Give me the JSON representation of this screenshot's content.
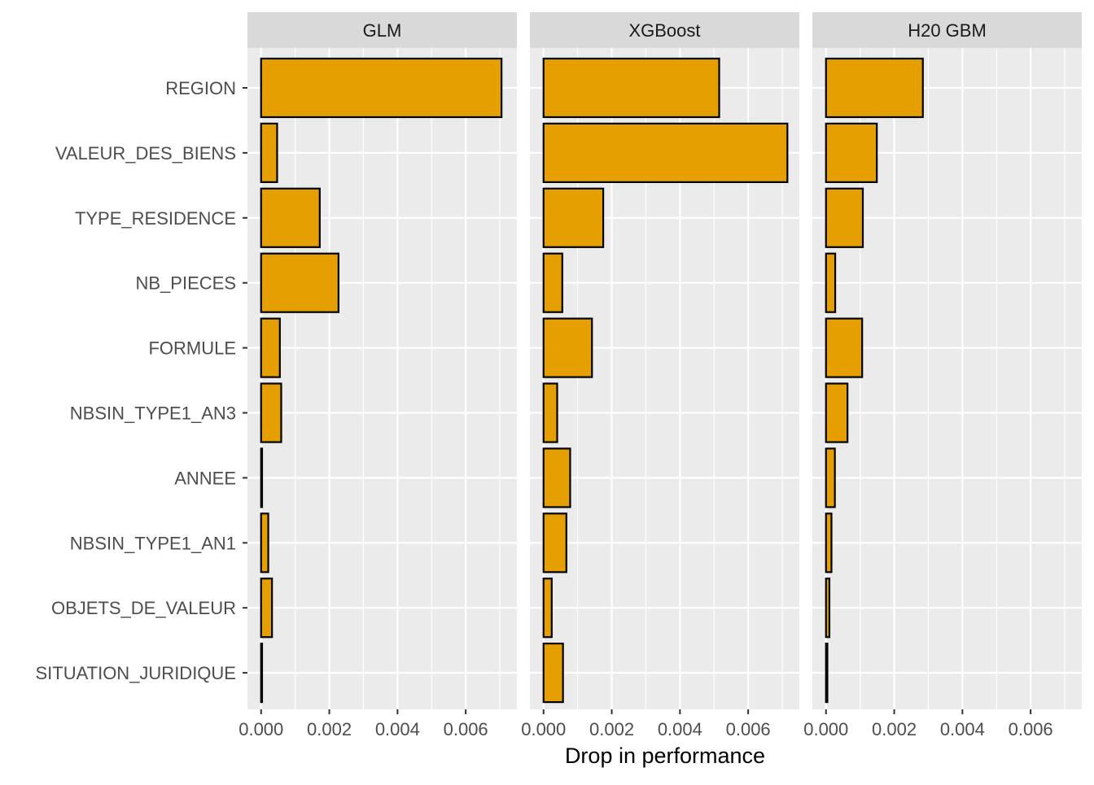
{
  "chart_data": {
    "type": "bar",
    "orientation": "horizontal",
    "xlabel": "Drop in performance",
    "ylabel": "",
    "xlim": [
      -0.0004,
      0.0075
    ],
    "x_ticks": [
      0.0,
      0.002,
      0.004,
      0.006
    ],
    "x_tick_labels": [
      "0.000",
      "0.002",
      "0.004",
      "0.006"
    ],
    "grid": true,
    "legend": "none",
    "bar_color": "#E69F00",
    "bar_outline": "#000000",
    "panel_background": "#EBEBEB",
    "strip_background": "#D9D9D9",
    "grid_color": "#FFFFFF",
    "categories": [
      "REGION",
      "VALEUR_DES_BIENS",
      "TYPE_RESIDENCE",
      "NB_PIECES",
      "FORMULE",
      "NBSIN_TYPE1_AN3",
      "ANNEE",
      "NBSIN_TYPE1_AN1",
      "OBJETS_DE_VALEUR",
      "SITUATION_JURIDIQUE"
    ],
    "panels": [
      {
        "name": "GLM",
        "values": [
          0.00705,
          0.00047,
          0.00172,
          0.00227,
          0.00055,
          0.00059,
          2e-05,
          0.00021,
          0.00032,
          2e-05
        ]
      },
      {
        "name": "XGBoost",
        "values": [
          0.00515,
          0.00715,
          0.00175,
          0.00055,
          0.00142,
          0.0004,
          0.00078,
          0.00067,
          0.00024,
          0.00057
        ]
      },
      {
        "name": "H20 GBM",
        "values": [
          0.00284,
          0.00149,
          0.00108,
          0.00027,
          0.00106,
          0.00063,
          0.00026,
          0.00016,
          0.0001,
          4e-05
        ]
      }
    ]
  }
}
